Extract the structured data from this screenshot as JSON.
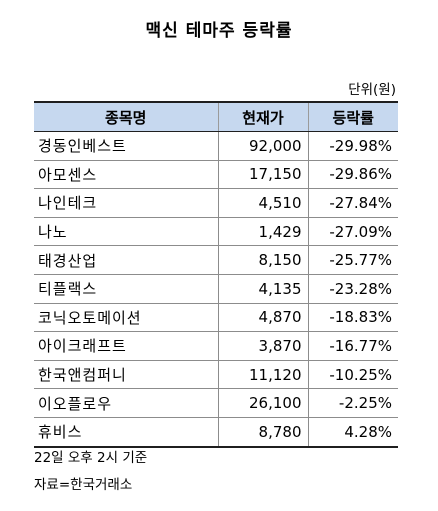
{
  "title": "맥신 테마주 등락률",
  "unit": "단위(원)",
  "table": {
    "headers": [
      "종목명",
      "현재가",
      "등락률"
    ],
    "rows": [
      [
        "경동인베스트",
        "92,000",
        "-29.98%"
      ],
      [
        "아모센스",
        "17,150",
        "-29.86%"
      ],
      [
        "나인테크",
        "4,510",
        "-27.84%"
      ],
      [
        "나노",
        "1,429",
        "-27.09%"
      ],
      [
        "태경산업",
        "8,150",
        "-25.77%"
      ],
      [
        "티플랙스",
        "4,135",
        "-23.28%"
      ],
      [
        "코닉오토메이션",
        "4,870",
        "-18.83%"
      ],
      [
        "아이크래프트",
        "3,870",
        "-16.77%"
      ],
      [
        "한국앤컴퍼니",
        "11,120",
        "-10.25%"
      ],
      [
        "이오플로우",
        "26,100",
        "-2.25%"
      ],
      [
        "휴비스",
        "8,780",
        "4.28%"
      ]
    ]
  },
  "notes": {
    "time": "22일 오후 2시 기준",
    "source": "자료=한국거래소"
  },
  "colors": {
    "header_bg": "#c6d8ef",
    "border_strong": "#1f1f1f",
    "border_light": "#8c8c8c"
  }
}
